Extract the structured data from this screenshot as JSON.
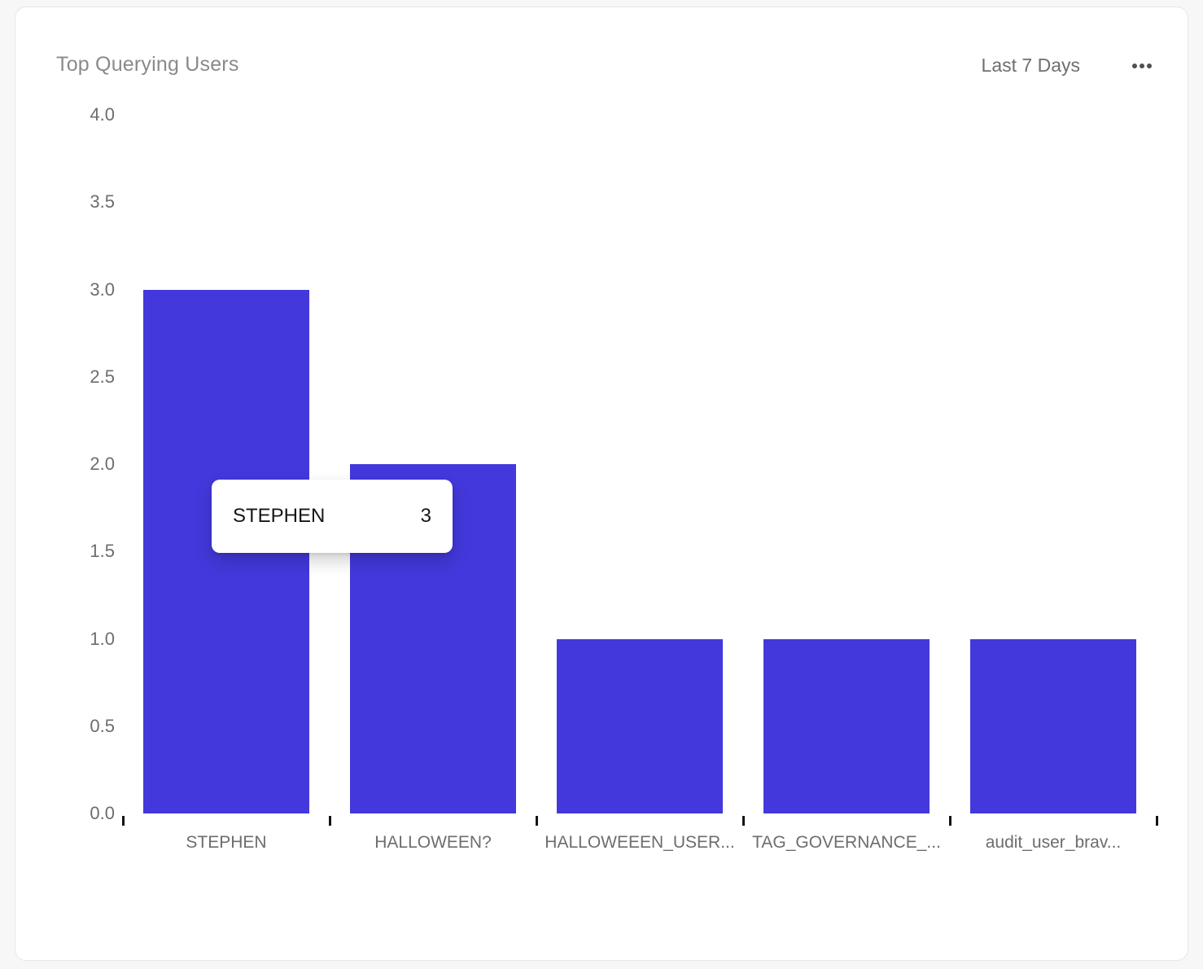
{
  "card": {
    "title": "Top Querying Users",
    "time_range": "Last 7 Days"
  },
  "tooltip": {
    "label": "STEPHEN",
    "value": "3"
  },
  "chart_data": {
    "type": "bar",
    "title": "Top Querying Users",
    "categories": [
      "STEPHEN",
      "HALLOWEEN?",
      "HALLOWEEEN_USER...",
      "TAG_GOVERNANCE_...",
      "audit_user_brav..."
    ],
    "values": [
      3,
      2,
      1,
      1,
      1
    ],
    "xlabel": "",
    "ylabel": "",
    "ylim": [
      0,
      4
    ],
    "ytick_labels": [
      "0.0",
      "0.5",
      "1.0",
      "1.5",
      "2.0",
      "2.5",
      "3.0",
      "3.5",
      "4.0"
    ],
    "grid": false,
    "legend": "none",
    "bar_color": "#4338db",
    "tick_color": "#141414",
    "axis_label_color": "#6d6d6d"
  }
}
